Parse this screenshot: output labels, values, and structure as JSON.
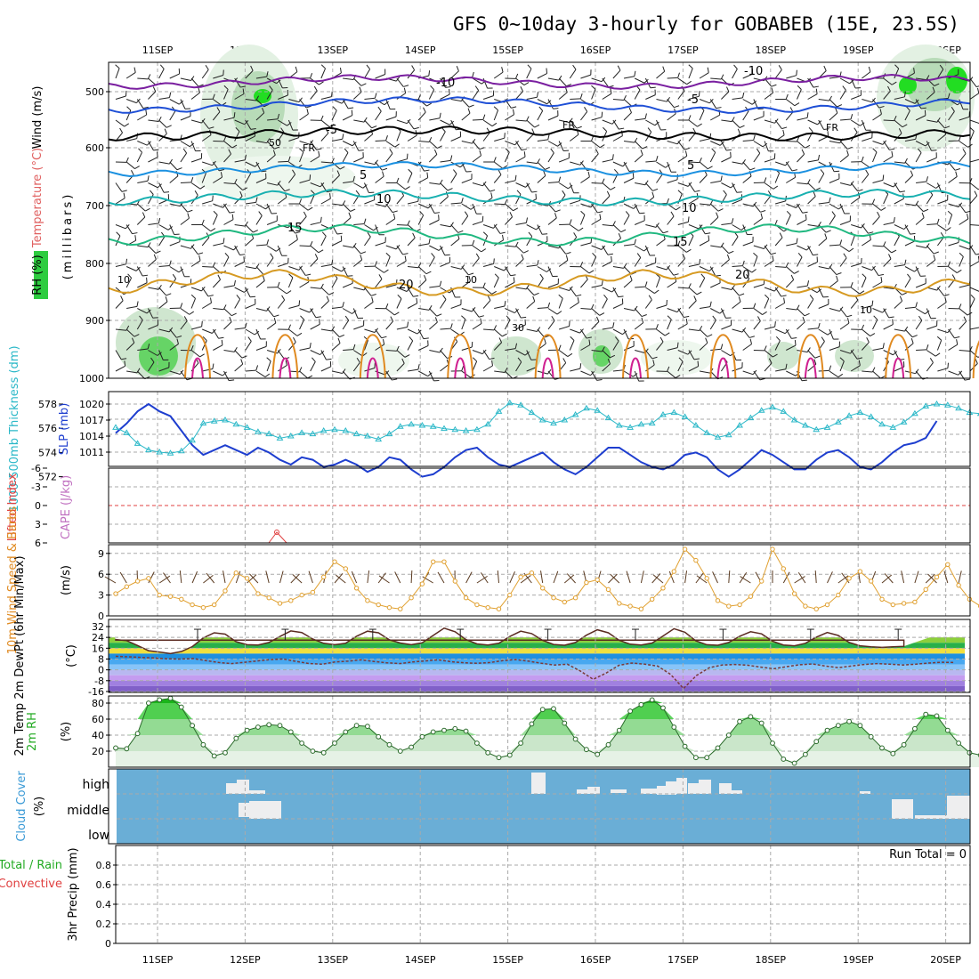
{
  "title": "GFS 0~10day 3-hourly for GOBABEB (15E, 23.5S)",
  "days": [
    "11SEP",
    "12SEP",
    "13SEP",
    "14SEP",
    "15SEP",
    "16SEP",
    "17SEP",
    "18SEP",
    "19SEP",
    "20SEP"
  ],
  "colors": {
    "frame": "#000000",
    "grid": "#aaaaaa",
    "rh": "#2ecc40",
    "cloud": "#6aaed6",
    "temp": "#e0a030",
    "thickness": "#1e3ecf",
    "slp": "#2bb8c8"
  },
  "panels": {
    "upper": {
      "ylabel_wind": "Wind (m/s)",
      "ylabel_temp": "Temperature (°C)",
      "ylabel_rh": "RH (%)",
      "ylabel_mb": "(millibars)",
      "yticks": [
        "500",
        "600",
        "700",
        "800",
        "900",
        "1000"
      ],
      "contour_labels": {
        "m10": "-10",
        "m5": "-5",
        "fr": "FR",
        "p5": "5",
        "p10": "10",
        "p15": "15",
        "p20": "20",
        "rh10": "10",
        "rh30": "30",
        "rh50": "50"
      }
    },
    "thickness": {
      "ylabel_left": "1000-500mb Thickness (dm)",
      "ylabel_right": "SLP (mb)",
      "yticks_left": [
        "578",
        "576",
        "574",
        "572"
      ],
      "yticks_right": [
        "1020",
        "1017",
        "1014",
        "1011"
      ]
    },
    "cape": {
      "ylabel_left": "Lifted Index",
      "ylabel_right": "CAPE (J/kg)",
      "yticks": [
        "-6",
        "-3",
        "0",
        "3",
        "6"
      ]
    },
    "wind10": {
      "ylabel": "10m Wind Speed & Barbs",
      "unit": "(m/s)",
      "yticks": [
        "9",
        "6",
        "3",
        "0"
      ]
    },
    "temp2m": {
      "ylabel": "2m Temp 2m DewPt (6hr Min/Max)",
      "unit": "(°C)",
      "yticks": [
        "32",
        "24",
        "16",
        "8",
        "0",
        "-8",
        "-16"
      ]
    },
    "rh2m": {
      "ylabel": "2m RH",
      "unit": "(%)",
      "yticks": [
        "80",
        "60",
        "40",
        "20"
      ]
    },
    "cloud": {
      "ylabel": "Cloud Cover",
      "unit": "(%)",
      "levels": [
        "high",
        "middle",
        "low"
      ]
    },
    "precip": {
      "ylabel_a": "Total / Rain",
      "ylabel_b": "Convective",
      "ylabel_c": "3hr Precip (mm)",
      "yticks": [
        "0.8",
        "0.6",
        "0.4",
        "0.2",
        "0"
      ],
      "run_total": "Run Total = 0"
    }
  },
  "chart_data": {
    "type": "line",
    "x_unit": "3-hourly steps from 10SEP 12Z",
    "thickness_dm": [
      575.6,
      576.4,
      577.4,
      578.0,
      577.4,
      577.0,
      575.8,
      574.6,
      573.8,
      574.2,
      574.6,
      574.2,
      573.8,
      574.4,
      574.0,
      573.4,
      573.0,
      573.6,
      573.4,
      572.8,
      573.0,
      573.4,
      573.0,
      572.4,
      572.8,
      573.6,
      573.4,
      572.6,
      572.0,
      572.2,
      572.8,
      573.6,
      574.2,
      574.4,
      573.6,
      573.0,
      572.8,
      573.2,
      573.6,
      574.0,
      573.2,
      572.6,
      572.2,
      572.8,
      573.6,
      574.4,
      574.4,
      573.8,
      573.2,
      572.8,
      572.6,
      573.0,
      573.8,
      574.0,
      573.6,
      572.6,
      572.0,
      572.6,
      573.4,
      574.2,
      573.8,
      573.2,
      572.6,
      572.6,
      573.4,
      574.0,
      574.2,
      573.6,
      572.8,
      572.6,
      573.2,
      574.0,
      574.6,
      574.8,
      575.2,
      576.6
    ],
    "slp_mb": [
      1015.6,
      1014.6,
      1012.6,
      1011.4,
      1011.0,
      1010.8,
      1011.2,
      1013.2,
      1016.4,
      1016.8,
      1017.0,
      1016.2,
      1015.6,
      1014.8,
      1014.4,
      1013.6,
      1014.0,
      1014.6,
      1014.4,
      1015.0,
      1015.2,
      1015.0,
      1014.4,
      1014.0,
      1013.4,
      1014.4,
      1015.8,
      1016.2,
      1016.0,
      1015.8,
      1015.4,
      1015.2,
      1015.0,
      1015.2,
      1016.2,
      1018.6,
      1020.2,
      1019.8,
      1018.4,
      1017.0,
      1016.4,
      1017.0,
      1018.0,
      1019.2,
      1018.8,
      1017.4,
      1016.0,
      1015.6,
      1016.2,
      1016.4,
      1018.0,
      1018.4,
      1017.6,
      1016.0,
      1014.6,
      1013.8,
      1014.2,
      1016.0,
      1017.4,
      1018.8,
      1019.4,
      1018.6,
      1017.0,
      1016.0,
      1015.2,
      1015.6,
      1016.6,
      1017.8,
      1018.4,
      1017.6,
      1016.2,
      1015.6,
      1016.6,
      1018.2,
      1019.6,
      1020.0,
      1019.8,
      1019.2,
      1018.4,
      1018.2,
      1017.8,
      1017.0
    ],
    "wind10m_ms": [
      3.2,
      4.2,
      5.0,
      5.4,
      3.0,
      2.8,
      2.4,
      1.6,
      1.2,
      1.6,
      3.6,
      6.2,
      5.4,
      3.2,
      2.6,
      1.8,
      2.2,
      3.0,
      3.4,
      5.6,
      7.8,
      6.8,
      4.0,
      2.2,
      1.6,
      1.2,
      1.0,
      2.6,
      4.6,
      7.8,
      7.8,
      5.0,
      2.6,
      1.6,
      1.2,
      1.0,
      3.0,
      5.6,
      6.2,
      4.0,
      2.6,
      2.0,
      2.6,
      4.8,
      5.2,
      3.8,
      1.8,
      1.4,
      1.0,
      2.4,
      4.0,
      6.4,
      9.6,
      8.0,
      5.4,
      2.2,
      1.4,
      1.6,
      2.8,
      5.0,
      9.6,
      6.8,
      3.2,
      1.4,
      1.0,
      1.6,
      3.0,
      5.4,
      6.4,
      5.0,
      2.4,
      1.6,
      1.8,
      2.0,
      3.8,
      5.6,
      7.4,
      4.4,
      2.4,
      1.4,
      1.0
    ],
    "temp2m_c": [
      22.4,
      21.6,
      18.0,
      14.2,
      13.2,
      12.0,
      13.6,
      17.2,
      23.6,
      27.4,
      26.4,
      20.8,
      18.6,
      18.4,
      20.2,
      24.6,
      28.8,
      27.6,
      22.8,
      19.6,
      18.6,
      19.6,
      24.8,
      28.6,
      27.4,
      22.2,
      19.8,
      18.6,
      20.0,
      25.4,
      30.8,
      28.2,
      22.4,
      19.2,
      18.4,
      19.6,
      24.6,
      28.6,
      26.8,
      21.8,
      18.8,
      18.2,
      20.2,
      25.6,
      29.6,
      27.4,
      21.8,
      19.0,
      18.4,
      19.8,
      25.0,
      30.4,
      27.8,
      21.4,
      18.6,
      18.2,
      20.2,
      24.8,
      28.2,
      26.6,
      21.2,
      18.4,
      17.8,
      19.6,
      24.2,
      27.6,
      25.4,
      20.2,
      17.8,
      17.0,
      16.6,
      17.0,
      17.4
    ],
    "dewpt2m_c": [
      10.0,
      9.6,
      9.2,
      8.8,
      8.2,
      8.0,
      8.4,
      6.8,
      5.4,
      4.6,
      5.6,
      6.6,
      7.6,
      8.0,
      6.2,
      4.6,
      4.2,
      5.8,
      6.4,
      7.4,
      6.2,
      5.2,
      4.6,
      5.8,
      6.6,
      7.4,
      6.0,
      5.2,
      4.8,
      5.4,
      6.8,
      7.6,
      6.4,
      4.8,
      3.6,
      4.2,
      -0.8,
      -7.0,
      -2.4,
      3.4,
      5.0,
      4.2,
      2.8,
      -3.4,
      -13.8,
      -4.2,
      1.6,
      3.6,
      4.0,
      3.4,
      2.0,
      0.8,
      2.4,
      3.8,
      4.4,
      2.8,
      1.6,
      2.8,
      4.0,
      4.6,
      4.2,
      3.6,
      4.2,
      5.0,
      5.6,
      5.4
    ],
    "rh2m_pct": [
      24,
      23,
      42,
      80,
      84,
      86,
      75,
      52,
      28,
      14,
      18,
      36,
      46,
      50,
      53,
      52,
      44,
      30,
      20,
      18,
      30,
      44,
      52,
      51,
      38,
      28,
      20,
      25,
      38,
      44,
      46,
      48,
      45,
      30,
      18,
      12,
      15,
      30,
      54,
      72,
      73,
      55,
      35,
      22,
      16,
      28,
      46,
      70,
      78,
      84,
      74,
      50,
      26,
      12,
      12,
      24,
      40,
      57,
      63,
      55,
      30,
      10,
      5,
      16,
      32,
      46,
      52,
      57,
      52,
      38,
      24,
      17,
      28,
      48,
      66,
      64,
      46,
      30,
      18,
      15,
      28,
      44,
      42,
      48,
      50
    ]
  }
}
